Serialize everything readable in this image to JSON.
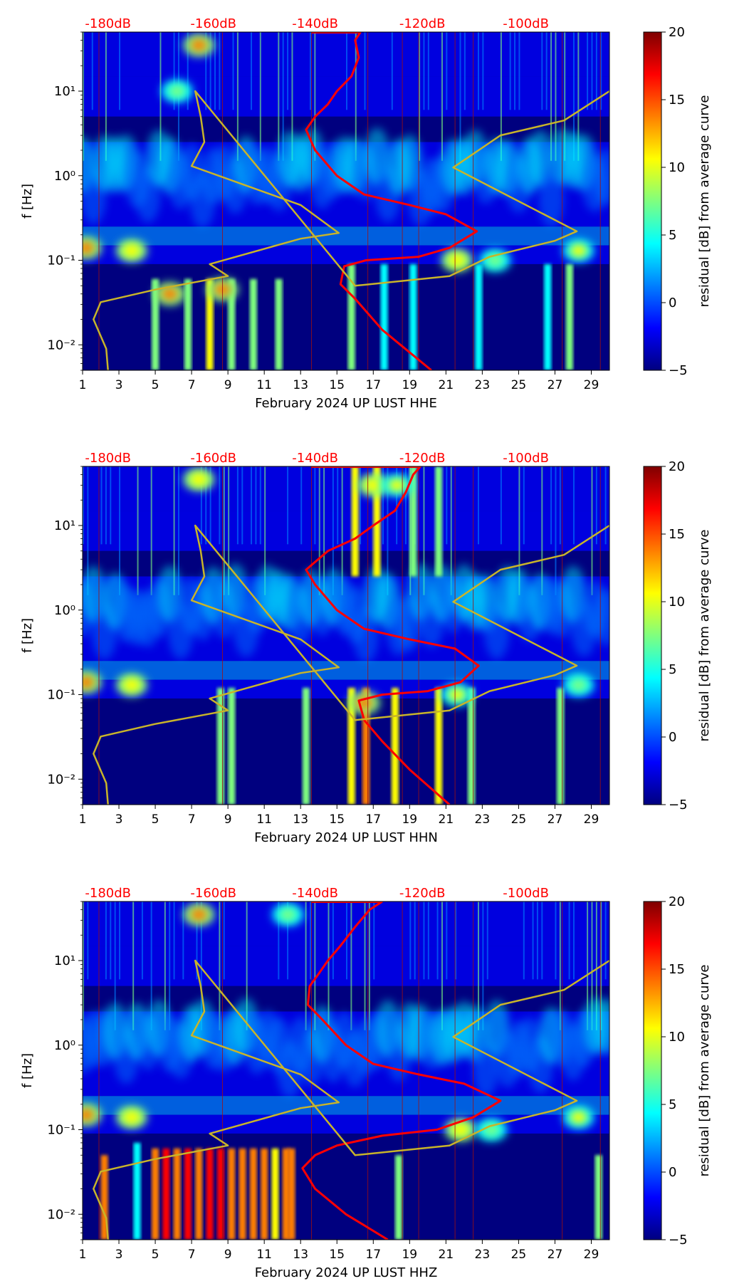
{
  "figure": {
    "colorbar": {
      "label": "residual [dB] from average curve",
      "ticks": [
        20,
        15,
        10,
        5,
        0,
        -5
      ],
      "tick_labels": [
        "20",
        "15",
        "10",
        "5",
        "0",
        "−5"
      ],
      "colors": [
        "#00007f",
        "#0000ff",
        "#007fff",
        "#00ffff",
        "#7fff7f",
        "#ffff00",
        "#ff7f00",
        "#ff0000",
        "#7f0000"
      ]
    },
    "psd_scale": {
      "labels": [
        "-180dB",
        "-160dB",
        "-140dB",
        "-120dB",
        "-100dB"
      ],
      "color": "#ff0000"
    },
    "line_colors": {
      "median_psd": "#ff0000",
      "noise_model": "#c8b42a"
    }
  },
  "chart_data": [
    {
      "type": "heatmap",
      "title": "",
      "xlabel": "February 2024 UP LUST  HHE",
      "ylabel": "f [Hz]",
      "xlim": [
        1,
        30
      ],
      "ylim": [
        0.005,
        50
      ],
      "yscale": "log",
      "x_ticks": [
        1,
        3,
        5,
        7,
        9,
        11,
        13,
        15,
        17,
        19,
        21,
        23,
        25,
        27,
        29
      ],
      "x_tick_labels": [
        "1",
        "3",
        "5",
        "7",
        "9",
        "11",
        "13",
        "15",
        "17",
        "19",
        "21",
        "23",
        "25",
        "27",
        "29"
      ],
      "y_ticks": [
        0.01,
        0.1,
        1,
        10
      ],
      "y_tick_labels": [
        "10⁻²",
        "10⁻¹",
        "10⁰",
        "10¹"
      ],
      "dB_ticks": [
        2.4,
        8.2,
        13.8,
        19.7,
        25.4
      ],
      "day_markers": [
        1.9,
        8.7,
        13.6,
        16.7,
        18.6,
        19.5,
        21.5,
        22.5,
        27.4,
        29.5
      ],
      "hotspots": [
        [
          1.2,
          0.14,
          14
        ],
        [
          3.7,
          0.13,
          12
        ],
        [
          7.4,
          35,
          14
        ],
        [
          5.8,
          0.04,
          14
        ],
        [
          8.7,
          0.045,
          14
        ],
        [
          21.6,
          0.1,
          12
        ],
        [
          23.7,
          0.1,
          9
        ],
        [
          28.3,
          0.13,
          10
        ],
        [
          6.2,
          10,
          9
        ]
      ],
      "bands": [
        [
          5.0,
          0.005,
          0.06,
          8
        ],
        [
          6.8,
          0.005,
          0.06,
          9
        ],
        [
          8.0,
          0.005,
          0.06,
          12
        ],
        [
          9.2,
          0.005,
          0.06,
          9
        ],
        [
          10.4,
          0.005,
          0.06,
          6
        ],
        [
          11.8,
          0.005,
          0.06,
          6
        ],
        [
          15.8,
          0.005,
          0.09,
          6
        ],
        [
          17.6,
          0.005,
          0.09,
          4
        ],
        [
          19.2,
          0.005,
          0.09,
          4
        ],
        [
          22.8,
          0.005,
          0.09,
          4
        ],
        [
          26.6,
          0.005,
          0.09,
          4
        ],
        [
          27.8,
          0.005,
          0.09,
          9
        ]
      ],
      "series": [
        {
          "name": "median PSD",
          "points": [
            [
              20.2,
              0.005
            ],
            [
              17.5,
              0.015
            ],
            [
              16.0,
              0.035
            ],
            [
              15.2,
              0.052
            ],
            [
              15.4,
              0.085
            ],
            [
              16.6,
              0.1
            ],
            [
              19.5,
              0.11
            ],
            [
              21.2,
              0.14
            ],
            [
              22.7,
              0.22
            ],
            [
              21.0,
              0.35
            ],
            [
              19.0,
              0.45
            ],
            [
              16.5,
              0.6
            ],
            [
              15.0,
              1.0
            ],
            [
              13.8,
              2.0
            ],
            [
              13.3,
              3.5
            ],
            [
              13.8,
              5.0
            ],
            [
              14.5,
              7.0
            ],
            [
              15.0,
              10.0
            ],
            [
              15.8,
              15.0
            ],
            [
              16.2,
              25.0
            ],
            [
              16.0,
              40.0
            ],
            [
              16.3,
              50.0
            ]
          ]
        },
        {
          "name": "noise model",
          "points": [
            [
              2.4,
              0.005
            ],
            [
              2.3,
              0.009
            ],
            [
              1.6,
              0.02
            ],
            [
              2.0,
              0.032
            ],
            [
              5.0,
              0.045
            ],
            [
              9.0,
              0.065
            ],
            [
              8.0,
              0.09
            ],
            [
              13.0,
              0.18
            ],
            [
              15.1,
              0.21
            ],
            [
              13.0,
              0.45
            ],
            [
              7.0,
              1.3
            ],
            [
              7.7,
              2.5
            ],
            [
              7.5,
              5.0
            ],
            [
              7.2,
              10.0
            ],
            [
              7.2,
              10.0
            ],
            [
              16.0,
              0.05
            ],
            [
              21.2,
              0.065
            ],
            [
              23.4,
              0.11
            ],
            [
              27.0,
              0.17
            ],
            [
              28.2,
              0.22
            ],
            [
              21.4,
              1.25
            ],
            [
              24.0,
              3.0
            ],
            [
              27.5,
              4.5
            ],
            [
              30.0,
              10.0
            ]
          ]
        }
      ]
    },
    {
      "type": "heatmap",
      "title": "",
      "xlabel": "February 2024 UP LUST  HHN",
      "ylabel": "f [Hz]",
      "xlim": [
        1,
        30
      ],
      "ylim": [
        0.005,
        50
      ],
      "yscale": "log",
      "x_ticks": [
        1,
        3,
        5,
        7,
        9,
        11,
        13,
        15,
        17,
        19,
        21,
        23,
        25,
        27,
        29
      ],
      "x_tick_labels": [
        "1",
        "3",
        "5",
        "7",
        "9",
        "11",
        "13",
        "15",
        "17",
        "19",
        "21",
        "23",
        "25",
        "27",
        "29"
      ],
      "y_ticks": [
        0.01,
        0.1,
        1,
        10
      ],
      "y_tick_labels": [
        "10⁻²",
        "10⁻¹",
        "10⁰",
        "10¹"
      ],
      "dB_ticks": [
        2.4,
        8.2,
        13.8,
        19.7,
        25.4
      ],
      "day_markers": [
        1.9,
        8.7,
        13.6,
        16.7,
        18.6,
        19.5,
        21.5,
        22.5,
        27.4,
        29.5
      ],
      "hotspots": [
        [
          1.2,
          0.14,
          14
        ],
        [
          3.7,
          0.13,
          12
        ],
        [
          7.4,
          35,
          12
        ],
        [
          21.6,
          0.1,
          10
        ],
        [
          28.3,
          0.13,
          9
        ],
        [
          16.5,
          0.08,
          14
        ],
        [
          17.0,
          30,
          12
        ],
        [
          18.3,
          30,
          10
        ]
      ],
      "bands": [
        [
          8.6,
          0.005,
          0.12,
          8
        ],
        [
          9.2,
          0.005,
          0.12,
          6
        ],
        [
          13.3,
          0.005,
          0.12,
          8
        ],
        [
          15.8,
          0.005,
          0.12,
          12
        ],
        [
          16.6,
          0.005,
          0.12,
          14
        ],
        [
          18.2,
          0.005,
          0.12,
          12
        ],
        [
          20.6,
          0.005,
          0.12,
          10
        ],
        [
          22.4,
          0.005,
          0.12,
          6
        ],
        [
          27.3,
          0.005,
          0.12,
          9
        ],
        [
          16.0,
          2.5,
          50,
          10
        ],
        [
          17.2,
          2.5,
          50,
          10
        ],
        [
          19.2,
          2.5,
          50,
          8
        ],
        [
          20.6,
          2.5,
          50,
          6
        ]
      ],
      "series": [
        {
          "name": "median PSD",
          "points": [
            [
              21.2,
              0.005
            ],
            [
              19.0,
              0.013
            ],
            [
              17.5,
              0.028
            ],
            [
              16.5,
              0.05
            ],
            [
              16.2,
              0.085
            ],
            [
              17.5,
              0.1
            ],
            [
              20.0,
              0.11
            ],
            [
              21.8,
              0.14
            ],
            [
              22.8,
              0.22
            ],
            [
              21.5,
              0.35
            ],
            [
              19.0,
              0.45
            ],
            [
              16.5,
              0.6
            ],
            [
              15.0,
              1.0
            ],
            [
              13.8,
              2.0
            ],
            [
              13.3,
              3.0
            ],
            [
              14.5,
              5.0
            ],
            [
              16.0,
              7.0
            ],
            [
              17.0,
              10.0
            ],
            [
              18.2,
              15.0
            ],
            [
              18.8,
              25.0
            ],
            [
              19.2,
              40.0
            ],
            [
              19.6,
              50.0
            ]
          ]
        },
        {
          "name": "noise model",
          "points": [
            [
              2.4,
              0.005
            ],
            [
              2.3,
              0.009
            ],
            [
              1.6,
              0.02
            ],
            [
              2.0,
              0.032
            ],
            [
              5.0,
              0.045
            ],
            [
              9.0,
              0.065
            ],
            [
              8.0,
              0.09
            ],
            [
              13.0,
              0.18
            ],
            [
              15.1,
              0.21
            ],
            [
              13.0,
              0.45
            ],
            [
              7.0,
              1.3
            ],
            [
              7.7,
              2.5
            ],
            [
              7.5,
              5.0
            ],
            [
              7.2,
              10.0
            ],
            [
              7.2,
              10.0
            ],
            [
              16.0,
              0.05
            ],
            [
              21.2,
              0.065
            ],
            [
              23.4,
              0.11
            ],
            [
              27.0,
              0.17
            ],
            [
              28.2,
              0.22
            ],
            [
              21.4,
              1.25
            ],
            [
              24.0,
              3.0
            ],
            [
              27.5,
              4.5
            ],
            [
              30.0,
              10.0
            ]
          ]
        }
      ]
    },
    {
      "type": "heatmap",
      "title": "",
      "xlabel": "February 2024 UP LUST  HHZ",
      "ylabel": "f [Hz]",
      "xlim": [
        1,
        30
      ],
      "ylim": [
        0.005,
        50
      ],
      "yscale": "log",
      "x_ticks": [
        1,
        3,
        5,
        7,
        9,
        11,
        13,
        15,
        17,
        19,
        21,
        23,
        25,
        27,
        29
      ],
      "x_tick_labels": [
        "1",
        "3",
        "5",
        "7",
        "9",
        "11",
        "13",
        "15",
        "17",
        "19",
        "21",
        "23",
        "25",
        "27",
        "29"
      ],
      "y_ticks": [
        0.01,
        0.1,
        1,
        10
      ],
      "y_tick_labels": [
        "10⁻²",
        "10⁻¹",
        "10⁰",
        "10¹"
      ],
      "dB_ticks": [
        2.4,
        8.2,
        13.8,
        19.7,
        25.4
      ],
      "day_markers": [
        1.9,
        8.7,
        13.6,
        16.7,
        18.6,
        19.5,
        21.5,
        22.5,
        27.4,
        29.5
      ],
      "hotspots": [
        [
          1.2,
          0.15,
          14
        ],
        [
          3.7,
          0.14,
          12
        ],
        [
          7.4,
          35,
          14
        ],
        [
          21.8,
          0.1,
          12
        ],
        [
          23.5,
          0.1,
          8
        ],
        [
          28.3,
          0.14,
          10
        ],
        [
          12.3,
          35,
          8
        ]
      ],
      "bands": [
        [
          2.2,
          0.005,
          0.05,
          14
        ],
        [
          4.0,
          0.005,
          0.07,
          4
        ],
        [
          5.0,
          0.005,
          0.06,
          15
        ],
        [
          5.6,
          0.005,
          0.06,
          16
        ],
        [
          6.2,
          0.005,
          0.06,
          15
        ],
        [
          6.8,
          0.005,
          0.06,
          17
        ],
        [
          7.4,
          0.005,
          0.06,
          15
        ],
        [
          8.0,
          0.005,
          0.06,
          17
        ],
        [
          8.6,
          0.005,
          0.06,
          16
        ],
        [
          9.2,
          0.005,
          0.06,
          14
        ],
        [
          9.8,
          0.005,
          0.06,
          15
        ],
        [
          10.4,
          0.005,
          0.06,
          13
        ],
        [
          11.0,
          0.005,
          0.06,
          15
        ],
        [
          11.6,
          0.005,
          0.06,
          12
        ],
        [
          12.2,
          0.005,
          0.06,
          14
        ],
        [
          12.5,
          0.005,
          0.06,
          13
        ],
        [
          18.4,
          0.005,
          0.05,
          6
        ],
        [
          29.4,
          0.005,
          0.05,
          6
        ]
      ],
      "series": [
        {
          "name": "median PSD",
          "points": [
            [
              17.8,
              0.005
            ],
            [
              15.5,
              0.01
            ],
            [
              13.8,
              0.02
            ],
            [
              13.1,
              0.035
            ],
            [
              13.8,
              0.05
            ],
            [
              15.0,
              0.065
            ],
            [
              17.5,
              0.085
            ],
            [
              20.5,
              0.1
            ],
            [
              22.5,
              0.14
            ],
            [
              24.0,
              0.22
            ],
            [
              22.0,
              0.35
            ],
            [
              19.5,
              0.45
            ],
            [
              17.0,
              0.6
            ],
            [
              15.5,
              1.0
            ],
            [
              14.2,
              2.0
            ],
            [
              13.4,
              3.0
            ],
            [
              13.5,
              5.0
            ],
            [
              14.0,
              7.0
            ],
            [
              14.5,
              10.0
            ],
            [
              15.2,
              15.0
            ],
            [
              16.0,
              25.0
            ],
            [
              16.8,
              40.0
            ],
            [
              17.5,
              50.0
            ]
          ]
        },
        {
          "name": "noise model",
          "points": [
            [
              2.4,
              0.005
            ],
            [
              2.3,
              0.009
            ],
            [
              1.6,
              0.02
            ],
            [
              2.0,
              0.032
            ],
            [
              5.0,
              0.045
            ],
            [
              9.0,
              0.065
            ],
            [
              8.0,
              0.09
            ],
            [
              13.0,
              0.18
            ],
            [
              15.1,
              0.21
            ],
            [
              13.0,
              0.45
            ],
            [
              7.0,
              1.3
            ],
            [
              7.7,
              2.5
            ],
            [
              7.5,
              5.0
            ],
            [
              7.2,
              10.0
            ],
            [
              7.2,
              10.0
            ],
            [
              16.0,
              0.05
            ],
            [
              21.2,
              0.065
            ],
            [
              23.4,
              0.11
            ],
            [
              27.0,
              0.17
            ],
            [
              28.2,
              0.22
            ],
            [
              21.4,
              1.25
            ],
            [
              24.0,
              3.0
            ],
            [
              27.5,
              4.5
            ],
            [
              30.0,
              10.0
            ]
          ]
        }
      ]
    }
  ]
}
